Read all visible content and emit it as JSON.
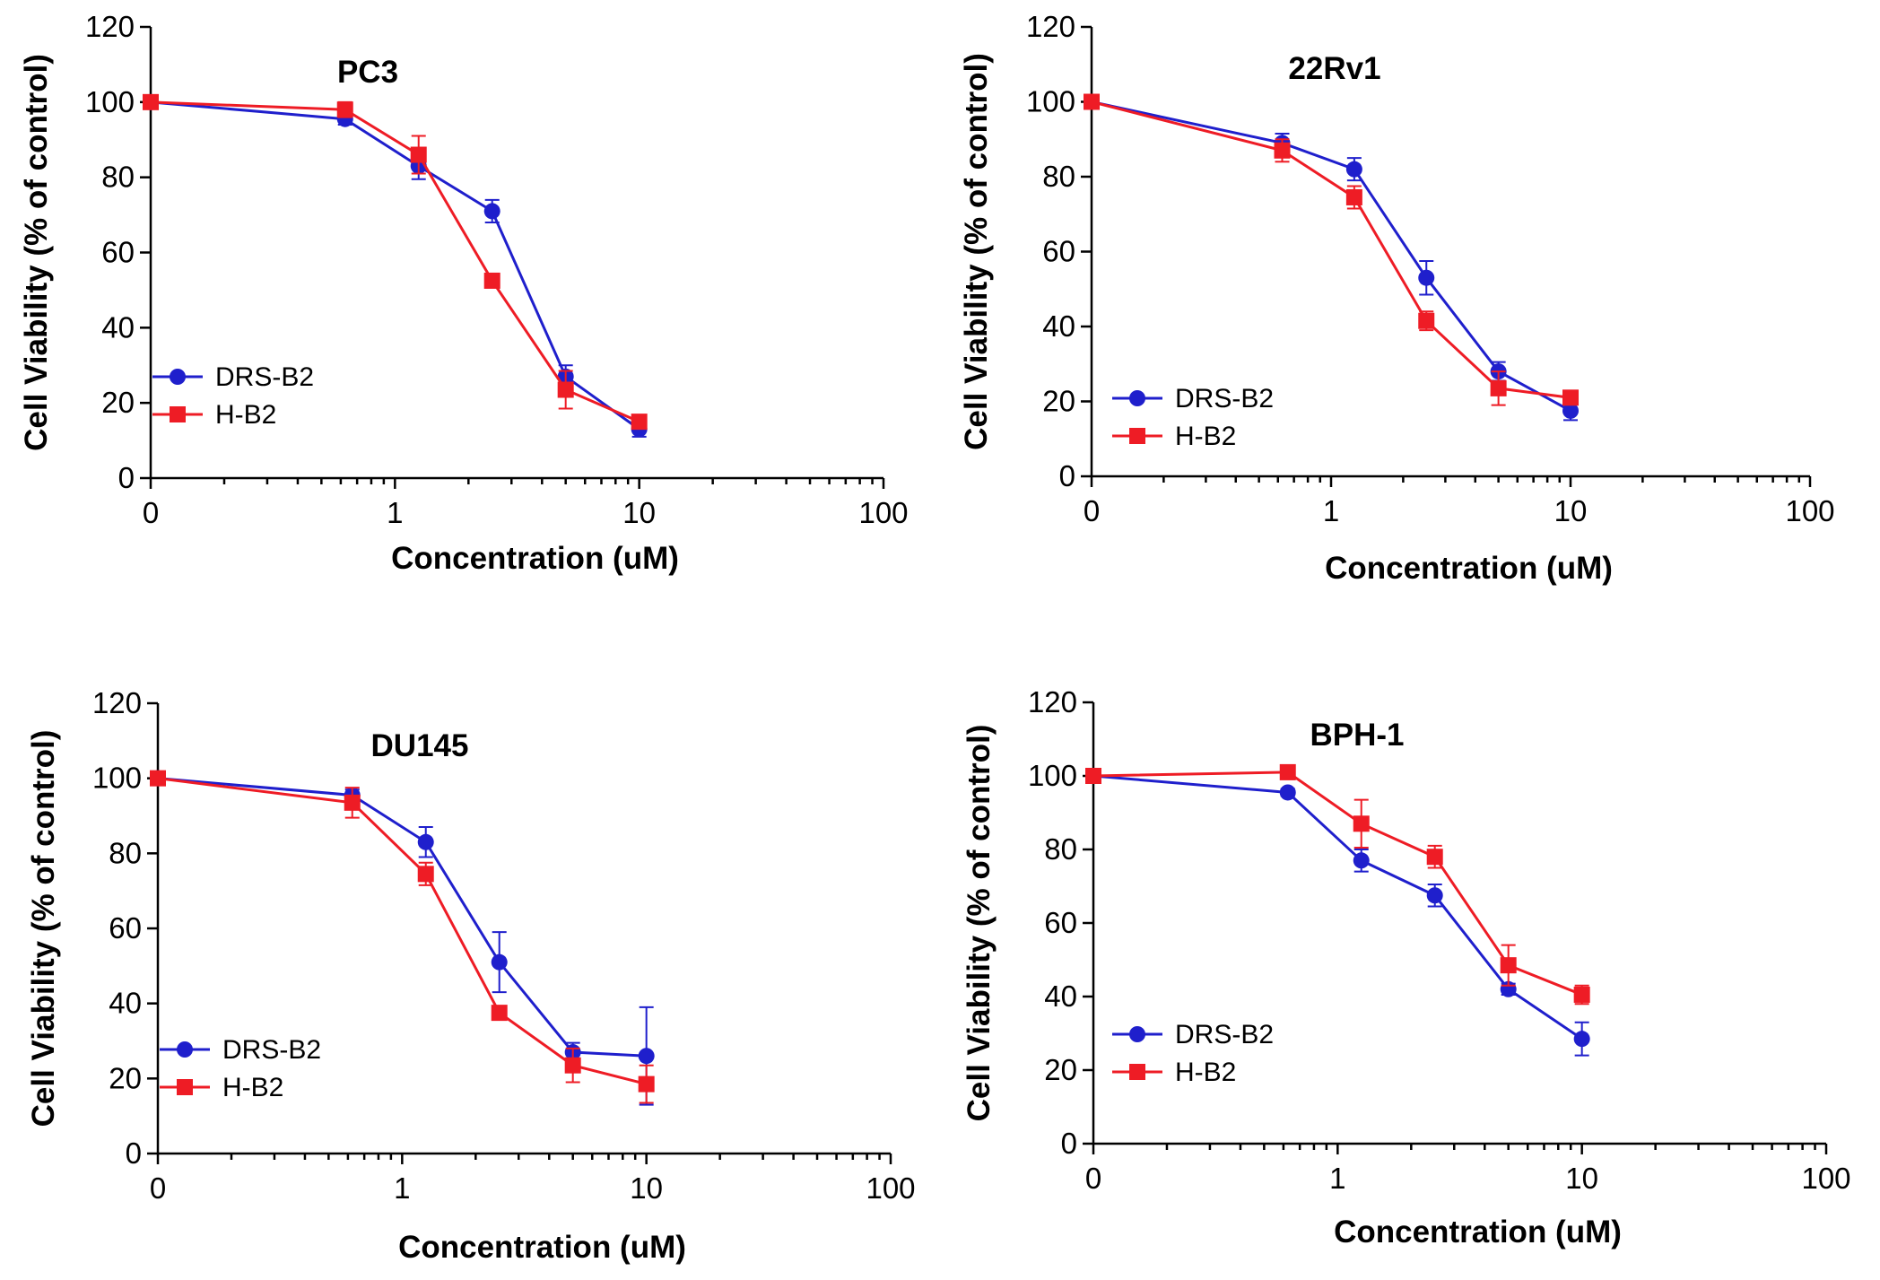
{
  "chart_data": [
    {
      "type": "line",
      "title": "PC3",
      "xlabel": "Concentration (uM)",
      "ylabel": "Cell Viability (% of control)",
      "xscale": "log",
      "x_tick_labels": [
        "0",
        "1",
        "10",
        "100"
      ],
      "y_tick_labels": [
        "0",
        "20",
        "40",
        "60",
        "80",
        "100",
        "120"
      ],
      "ylim": [
        0,
        120
      ],
      "legend_position": "lower-left",
      "series": [
        {
          "name": "DRS-B2",
          "color": "#1f1fcc",
          "marker": "circle",
          "x": [
            0,
            0.625,
            1.25,
            2.5,
            5,
            10
          ],
          "y": [
            100,
            95.5,
            83,
            71,
            27,
            13
          ],
          "err": [
            0,
            1.5,
            3.5,
            3,
            3,
            2
          ]
        },
        {
          "name": "H-B2",
          "color": "#ee1c25",
          "marker": "square",
          "x": [
            0,
            0.625,
            1.25,
            2.5,
            5,
            10
          ],
          "y": [
            100,
            98,
            86,
            52.5,
            23.5,
            15
          ],
          "err": [
            0,
            2,
            5,
            1.5,
            5,
            1.5
          ]
        }
      ]
    },
    {
      "type": "line",
      "title": "22Rv1",
      "xlabel": "Concentration (uM)",
      "ylabel": "Cell Viability (% of control)",
      "xscale": "log",
      "x_tick_labels": [
        "0",
        "1",
        "10",
        "100"
      ],
      "y_tick_labels": [
        "0",
        "20",
        "40",
        "60",
        "80",
        "100",
        "120"
      ],
      "ylim": [
        0,
        120
      ],
      "legend_position": "lower-left",
      "series": [
        {
          "name": "DRS-B2",
          "color": "#1f1fcc",
          "marker": "circle",
          "x": [
            0,
            0.625,
            1.25,
            2.5,
            5,
            10
          ],
          "y": [
            100,
            89,
            82,
            53,
            28,
            17.5
          ],
          "err": [
            0,
            2.5,
            3,
            4.5,
            2.5,
            2.5
          ]
        },
        {
          "name": "H-B2",
          "color": "#ee1c25",
          "marker": "square",
          "x": [
            0,
            0.625,
            1.25,
            2.5,
            5,
            10
          ],
          "y": [
            100,
            87,
            74.5,
            41.5,
            23.5,
            21
          ],
          "err": [
            0,
            3,
            3,
            2.5,
            4.5,
            1
          ]
        }
      ]
    },
    {
      "type": "line",
      "title": "DU145",
      "xlabel": "Concentration (uM)",
      "ylabel": "Cell Viability (% of control)",
      "xscale": "log",
      "x_tick_labels": [
        "0",
        "1",
        "10",
        "100"
      ],
      "y_tick_labels": [
        "0",
        "20",
        "40",
        "60",
        "80",
        "100",
        "120"
      ],
      "ylim": [
        0,
        120
      ],
      "legend_position": "lower-left",
      "series": [
        {
          "name": "DRS-B2",
          "color": "#1f1fcc",
          "marker": "circle",
          "x": [
            0,
            0.625,
            1.25,
            2.5,
            5,
            10
          ],
          "y": [
            100,
            95.5,
            83,
            51,
            27,
            26
          ],
          "err": [
            0,
            1.5,
            4,
            8,
            2.5,
            13
          ]
        },
        {
          "name": "H-B2",
          "color": "#ee1c25",
          "marker": "square",
          "x": [
            0,
            0.625,
            1.25,
            2.5,
            5,
            10
          ],
          "y": [
            100,
            93.5,
            74.5,
            37.5,
            23.5,
            18.5
          ],
          "err": [
            0,
            4,
            3,
            1.5,
            4.5,
            5
          ]
        }
      ]
    },
    {
      "type": "line",
      "title": "BPH-1",
      "xlabel": "Concentration (uM)",
      "ylabel": "Cell Viability (% of control)",
      "xscale": "log",
      "x_tick_labels": [
        "0",
        "1",
        "10",
        "100"
      ],
      "y_tick_labels": [
        "0",
        "20",
        "40",
        "60",
        "80",
        "100",
        "120"
      ],
      "ylim": [
        0,
        120
      ],
      "legend_position": "lower-left",
      "series": [
        {
          "name": "DRS-B2",
          "color": "#1f1fcc",
          "marker": "circle",
          "x": [
            0,
            0.625,
            1.25,
            2.5,
            5,
            10
          ],
          "y": [
            100,
            95.5,
            77,
            67.5,
            42,
            28.5
          ],
          "err": [
            0,
            1,
            3,
            3,
            1.5,
            4.5
          ]
        },
        {
          "name": "H-B2",
          "color": "#ee1c25",
          "marker": "square",
          "x": [
            0,
            0.625,
            1.25,
            2.5,
            5,
            10
          ],
          "y": [
            100,
            101,
            87,
            78,
            48.5,
            40.5
          ],
          "err": [
            0,
            1,
            6.5,
            3,
            5.5,
            2.5
          ]
        }
      ]
    }
  ]
}
